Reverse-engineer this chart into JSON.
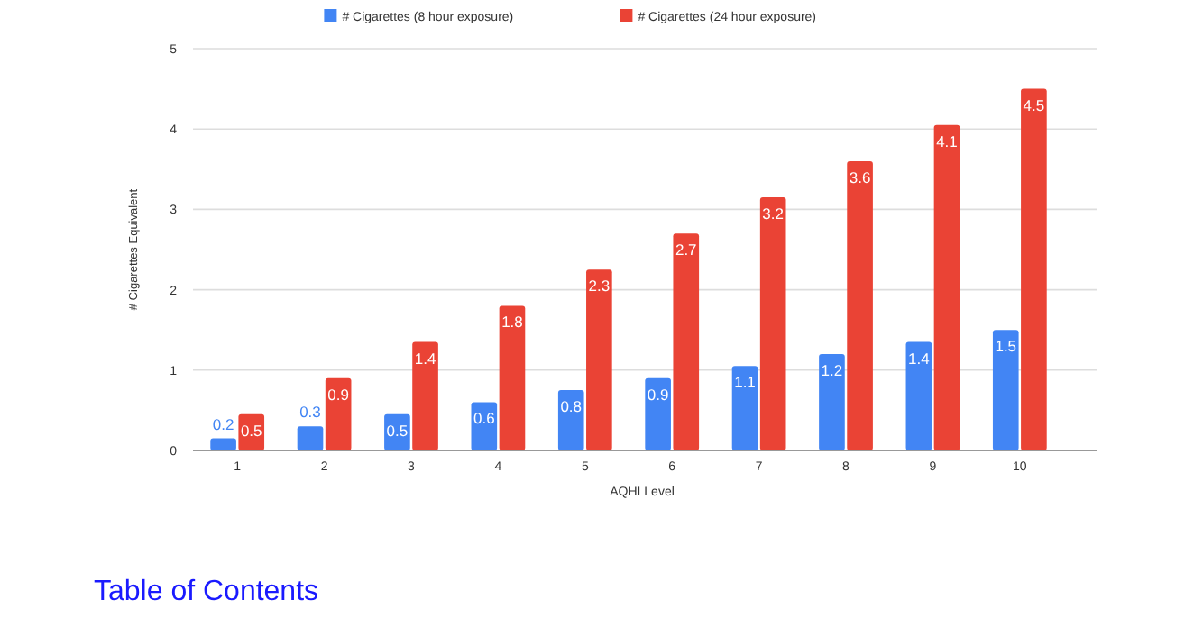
{
  "chart_data": {
    "type": "bar",
    "xlabel": "AQHI Level",
    "ylabel": "# Cigarettes Equivalent",
    "categories": [
      "1",
      "2",
      "3",
      "4",
      "5",
      "6",
      "7",
      "8",
      "9",
      "10"
    ],
    "series": [
      {
        "name": "# Cigarettes (8 hour exposure)",
        "color": "#4285f4",
        "values": [
          0.15,
          0.3,
          0.45,
          0.6,
          0.75,
          0.9,
          1.05,
          1.2,
          1.35,
          1.5
        ],
        "value_labels": [
          "0.2",
          "0.3",
          "0.5",
          "0.6",
          "0.8",
          "0.9",
          "1.1",
          "1.2",
          "1.4",
          "1.5"
        ]
      },
      {
        "name": "# Cigarettes (24 hour exposure)",
        "color": "#ea4335",
        "values": [
          0.45,
          0.9,
          1.35,
          1.8,
          2.25,
          2.7,
          3.15,
          3.6,
          4.05,
          4.5
        ],
        "value_labels": [
          "0.5",
          "0.9",
          "1.4",
          "1.8",
          "2.3",
          "2.7",
          "3.2",
          "3.6",
          "4.1",
          "4.5"
        ]
      }
    ],
    "ylim": [
      0,
      5
    ],
    "yticks": [
      0,
      1,
      2,
      3,
      4,
      5
    ],
    "grid": "y",
    "legend": "top",
    "annotations": [
      "Table of Contents"
    ]
  }
}
